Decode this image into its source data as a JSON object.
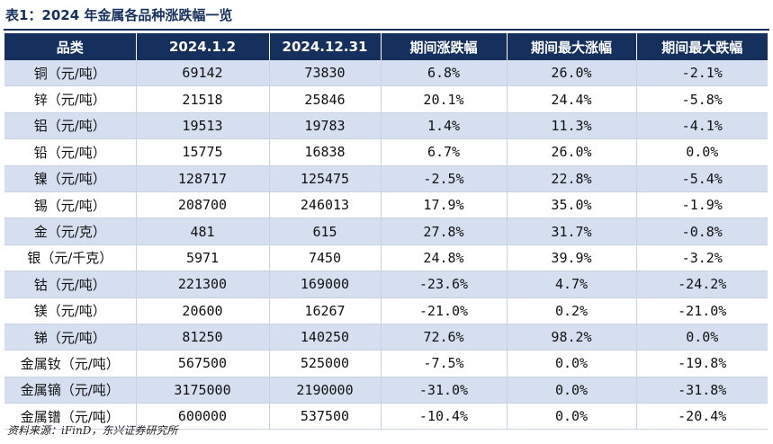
{
  "title": "表1：2024 年金属各品种涨跌幅一览",
  "columns": [
    "品类",
    "2024.1.2",
    "2024.12.31",
    "期间涨跌幅",
    "期间最大涨幅",
    "期间最大跌幅"
  ],
  "rows": [
    [
      "铜（元/吨）",
      "69142",
      "73830",
      "6.8%",
      "26.0%",
      "-2.1%"
    ],
    [
      "锌（元/吨）",
      "21518",
      "25846",
      "20.1%",
      "24.4%",
      "-5.8%"
    ],
    [
      "铝（元/吨）",
      "19513",
      "19783",
      "1.4%",
      "11.3%",
      "-4.1%"
    ],
    [
      "铅（元/吨）",
      "15775",
      "16838",
      "6.7%",
      "26.0%",
      "0.0%"
    ],
    [
      "镍（元/吨）",
      "128717",
      "125475",
      "-2.5%",
      "22.8%",
      "-5.4%"
    ],
    [
      "锡（元/吨）",
      "208700",
      "246013",
      "17.9%",
      "35.0%",
      "-1.9%"
    ],
    [
      "金（元/克）",
      "481",
      "615",
      "27.8%",
      "31.7%",
      "-0.8%"
    ],
    [
      "银（元/千克）",
      "5971",
      "7450",
      "24.8%",
      "39.9%",
      "-3.2%"
    ],
    [
      "钴（元/吨）",
      "221300",
      "169000",
      "-23.6%",
      "4.7%",
      "-24.2%"
    ],
    [
      "镁（元/吨）",
      "20600",
      "16267",
      "-21.0%",
      "0.2%",
      "-21.0%"
    ],
    [
      "锑（元/吨）",
      "81250",
      "140250",
      "72.6%",
      "98.2%",
      "0.0%"
    ],
    [
      "金属钕（元/吨）",
      "567500",
      "525000",
      "-7.5%",
      "0.0%",
      "-19.8%"
    ],
    [
      "金属镝（元/吨）",
      "3175000",
      "2190000",
      "-31.0%",
      "0.0%",
      "-31.8%"
    ],
    [
      "金属镨（元/吨）",
      "600000",
      "537500",
      "-10.4%",
      "0.0%",
      "-20.4%"
    ]
  ],
  "source": "资料来源：iFinD，东兴证券研究所"
}
